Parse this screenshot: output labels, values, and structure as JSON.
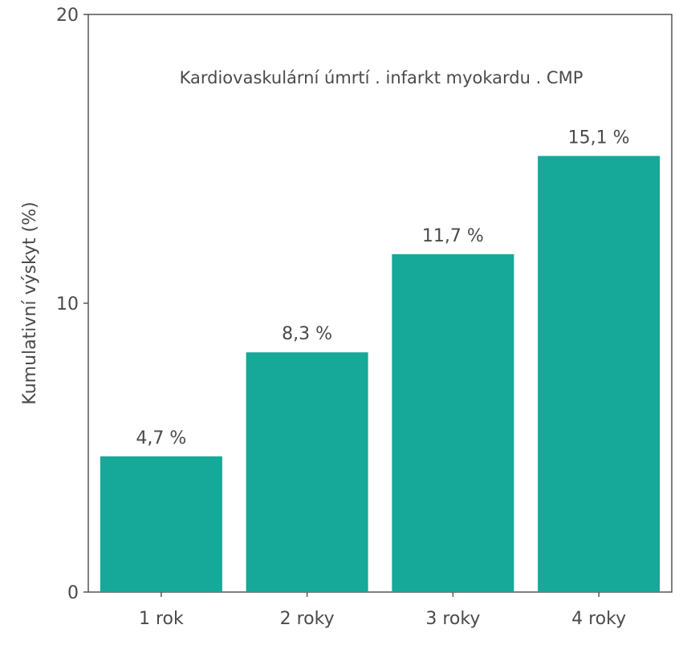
{
  "chart_data": {
    "type": "bar",
    "title": "Kardiovaskulární úmrtí . infarkt myokardu . CMP",
    "xlabel": "",
    "ylabel": "Kumulativní výskyt (%)",
    "categories": [
      "1 rok",
      "2 roky",
      "3 roky",
      "4 roky"
    ],
    "values": [
      4.7,
      8.3,
      11.7,
      15.1
    ],
    "data_labels": [
      "4,7 %",
      "8,3 %",
      "11,7 %",
      "15,1 %"
    ],
    "ylim": [
      0,
      20
    ],
    "yticks": [
      0,
      10,
      20
    ],
    "ytick_labels": [
      "0",
      "10",
      "20"
    ],
    "grid": false,
    "legend": "none",
    "colors": {
      "bar": "#16a898",
      "axis": "#555555",
      "text": "#4a4a4a"
    }
  }
}
